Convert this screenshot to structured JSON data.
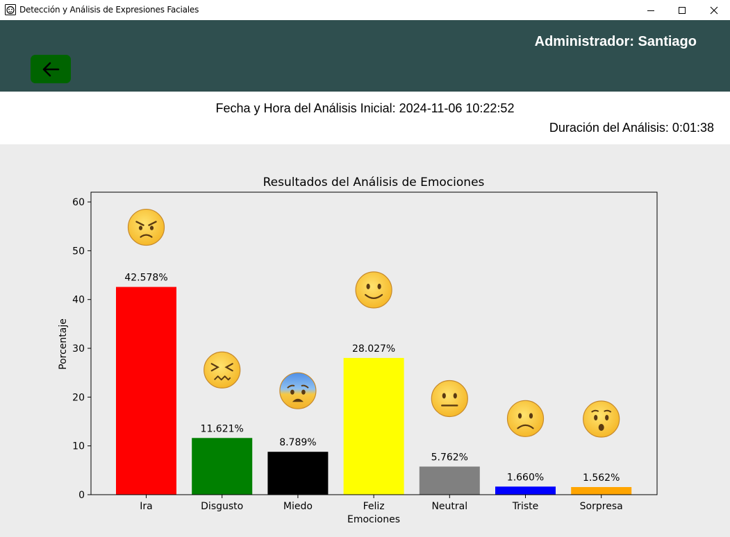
{
  "window": {
    "title": "Detección y Análisis de Expresiones Faciales",
    "app_icon": "face-scan-icon",
    "controls": [
      "minimize-icon",
      "maximize-icon",
      "close-icon"
    ]
  },
  "header": {
    "background": "#2f4f4f",
    "back_icon": "arrow-left-icon",
    "back_button_color": "#006400",
    "admin_label": "Administrador: Santiago"
  },
  "info": {
    "fecha": "Fecha y Hora del Análisis Inicial: 2024-11-06 10:22:52",
    "duracion": "Duración del Análisis: 0:01:38"
  },
  "chart_data": {
    "type": "bar",
    "title": "Resultados del Análisis de Emociones",
    "xlabel": "Emociones",
    "ylabel": "Porcentaje",
    "ylim": [
      0,
      62
    ],
    "yticks": [
      0,
      10,
      20,
      30,
      40,
      50,
      60
    ],
    "grid": false,
    "categories": [
      "Ira",
      "Disgusto",
      "Miedo",
      "Feliz",
      "Neutral",
      "Triste",
      "Sorpresa"
    ],
    "values": [
      42.578,
      11.621,
      8.789,
      28.027,
      5.762,
      1.66,
      1.562
    ],
    "data_labels": [
      "42.578%",
      "11.621%",
      "8.789%",
      "28.027%",
      "5.762%",
      "1.660%",
      "1.562%"
    ],
    "colors": [
      "#ff0000",
      "#008000",
      "#000000",
      "#ffff00",
      "#808080",
      "#0000ff",
      "#ffa500"
    ],
    "emoji_icons": [
      "angry-face-icon",
      "confounded-face-icon",
      "fearful-face-icon",
      "smiling-face-icon",
      "neutral-face-icon",
      "frowning-face-icon",
      "hushed-face-icon"
    ]
  }
}
